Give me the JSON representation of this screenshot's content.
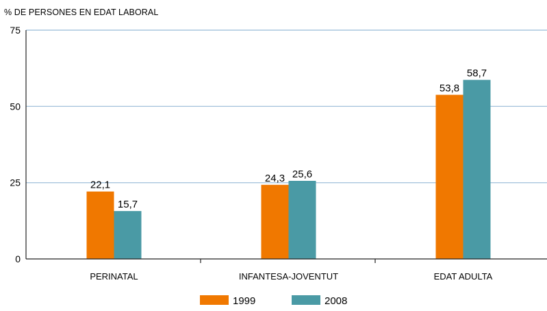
{
  "chart_data": {
    "type": "bar",
    "ylabel": "% DE PERSONES EN EDAT LABORAL",
    "xlabel": "",
    "ylim": [
      0,
      75
    ],
    "yticks": [
      "0",
      "25",
      "50",
      "75"
    ],
    "categories": [
      "PERINATAL",
      "INFANTESA-JOVENTUT",
      "EDAT ADULTA"
    ],
    "series": [
      {
        "name": "1999",
        "values": [
          22.1,
          24.3,
          53.8
        ],
        "labels": [
          "22,1",
          "24,3",
          "53,8"
        ],
        "color": "#f07800"
      },
      {
        "name": "2008",
        "values": [
          15.7,
          25.6,
          58.7
        ],
        "labels": [
          "15,7",
          "25,6",
          "58,7"
        ],
        "color": "#4a9aa5"
      }
    ],
    "grid": true,
    "gridColor": "#a9c5de",
    "legend": "bottom-center"
  }
}
